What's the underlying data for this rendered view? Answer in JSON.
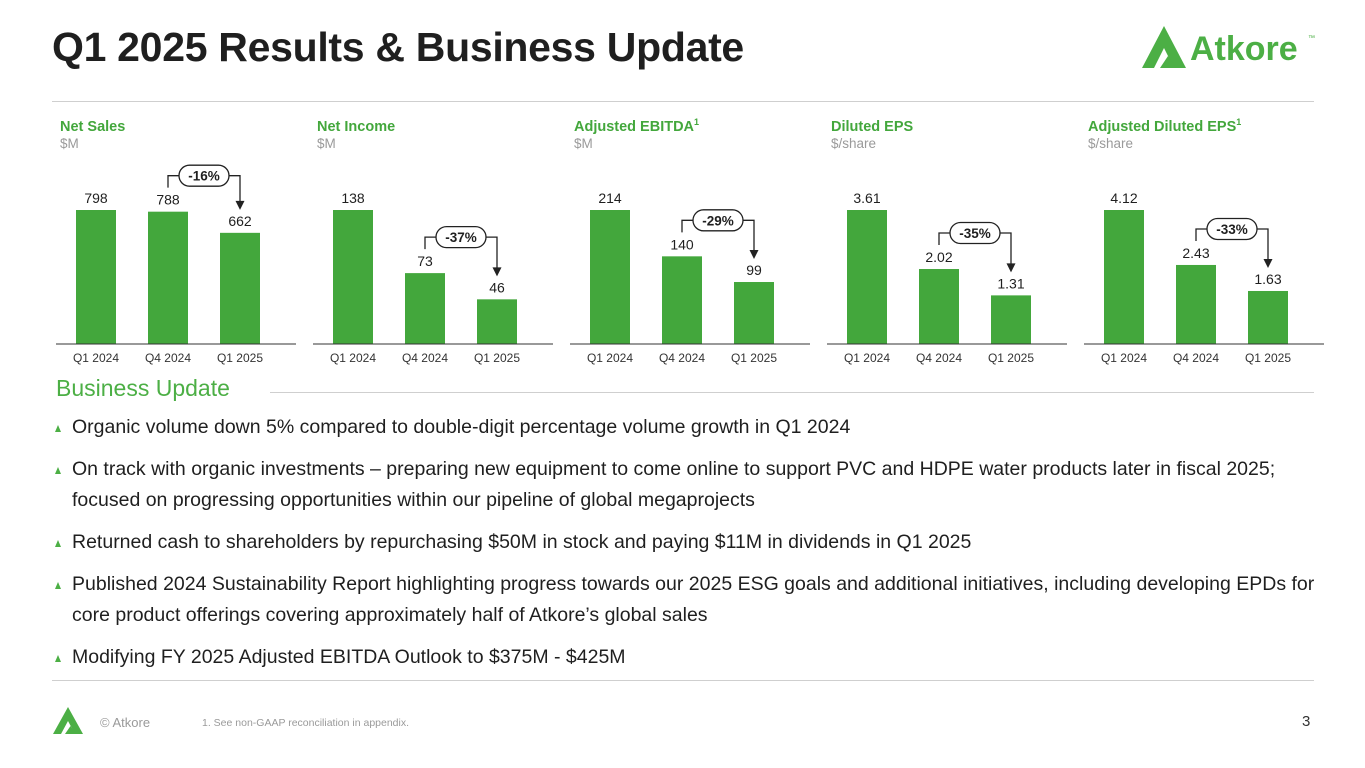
{
  "title": "Q1 2025 Results & Business Update",
  "logo_text": "Atkore",
  "logo_tm": "™",
  "colors": {
    "bar": "#43a73c",
    "accent": "#4caf45",
    "axis": "#333333"
  },
  "chart_data": [
    {
      "type": "bar",
      "title": "Net Sales",
      "title_sup": "",
      "unit": "$M",
      "categories": [
        "Q1 2024",
        "Q4 2024",
        "Q1 2025"
      ],
      "values": [
        798,
        788,
        662
      ],
      "labels": [
        "798",
        "788",
        "662"
      ],
      "change": "-16%",
      "change_from": 1,
      "change_to": 2
    },
    {
      "type": "bar",
      "title": "Net Income",
      "title_sup": "",
      "unit": "$M",
      "categories": [
        "Q1 2024",
        "Q4 2024",
        "Q1 2025"
      ],
      "values": [
        138,
        73,
        46
      ],
      "labels": [
        "138",
        "73",
        "46"
      ],
      "change": "-37%",
      "change_from": 1,
      "change_to": 2
    },
    {
      "type": "bar",
      "title": "Adjusted EBITDA",
      "title_sup": "1",
      "unit": "$M",
      "categories": [
        "Q1 2024",
        "Q4 2024",
        "Q1 2025"
      ],
      "values": [
        214,
        140,
        99
      ],
      "labels": [
        "214",
        "140",
        "99"
      ],
      "change": "-29%",
      "change_from": 1,
      "change_to": 2
    },
    {
      "type": "bar",
      "title": "Diluted EPS",
      "title_sup": "",
      "unit": "$/share",
      "categories": [
        "Q1 2024",
        "Q4 2024",
        "Q1 2025"
      ],
      "values": [
        3.61,
        2.02,
        1.31
      ],
      "labels": [
        "3.61",
        "2.02",
        "1.31"
      ],
      "change": "-35%",
      "change_from": 1,
      "change_to": 2
    },
    {
      "type": "bar",
      "title": "Adjusted Diluted EPS",
      "title_sup": "1",
      "unit": "$/share",
      "categories": [
        "Q1 2024",
        "Q4 2024",
        "Q1 2025"
      ],
      "values": [
        4.12,
        2.43,
        1.63
      ],
      "labels": [
        "4.12",
        "2.43",
        "1.63"
      ],
      "change": "-33%",
      "change_from": 1,
      "change_to": 2
    }
  ],
  "business_update": {
    "title": "Business Update",
    "bullets": [
      "Organic volume down 5% compared to double-digit percentage volume growth in Q1 2024",
      "On track with organic investments – preparing new equipment to come online to support PVC and HDPE water products later in fiscal 2025; focused on progressing opportunities within our pipeline of global megaprojects",
      "Returned cash to shareholders by repurchasing $50M in stock and paying $11M in dividends in Q1 2025",
      "Published 2024 Sustainability Report highlighting progress towards our 2025 ESG goals and additional initiatives, including developing EPDs for core product offerings covering approximately half of Atkore’s global sales",
      "Modifying FY 2025 Adjusted EBITDA Outlook to $375M - $425M"
    ]
  },
  "footer": {
    "copyright": "© Atkore",
    "footnote": "1.    See non-GAAP reconciliation in appendix.",
    "page_number": "3"
  }
}
